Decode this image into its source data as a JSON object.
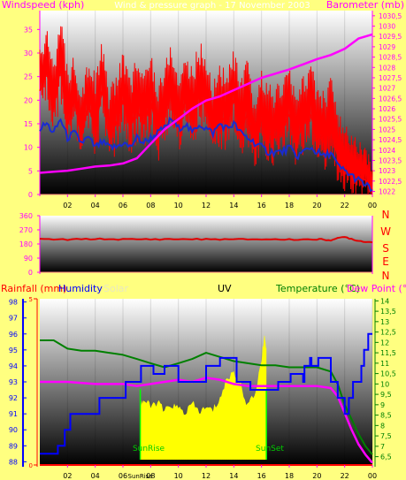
{
  "colors": {
    "background": "#ffff80",
    "wind": "#ff0000",
    "gust": "#ff0000",
    "wind_avg": "#1a2bd0",
    "barometer": "#ff00ff",
    "direction": "#e00000",
    "humidity": "#0000ff",
    "temperature": "#008000",
    "dewpoint": "#ff00ff",
    "solar": "#ffff00",
    "rain": "#ff0000",
    "daylight_line": "#00ff00",
    "axis_labels": "#ff00ff",
    "grid_line": "#ff8080"
  },
  "chart_data": [
    {
      "id": "wind-barometer",
      "type": "line",
      "title": "Wind & pressure graph - 17 November 2003",
      "left_axis_title": "Windspeed (kph)",
      "right_axis_title": "Barometer (mb)",
      "x_ticks": [
        "02",
        "04",
        "06",
        "08",
        "10",
        "12",
        "14",
        "16",
        "18",
        "20",
        "22",
        "00"
      ],
      "x_range": [
        0,
        24
      ],
      "left_ticks": [
        "0",
        "5",
        "10",
        "15",
        "20",
        "25",
        "30",
        "35"
      ],
      "left_range": [
        0,
        39
      ],
      "right_ticks": [
        "1022",
        "1022,5",
        "1023",
        "1023,5",
        "1024",
        "1024,5",
        "1025",
        "1025,5",
        "1026",
        "1026,5",
        "1027",
        "1027,5",
        "1028",
        "1028,5",
        "1029",
        "1029,5",
        "1030",
        "1030,5"
      ],
      "right_range": [
        1021.85,
        1030.75
      ],
      "series": {
        "gust_kph": {
          "x": [
            0,
            0.5,
            1,
            1.5,
            2,
            2.5,
            3,
            3.5,
            4,
            4.5,
            5,
            5.5,
            6,
            6.5,
            7,
            7.5,
            8,
            8.5,
            9,
            9.5,
            10,
            10.5,
            11,
            11.5,
            12,
            12.5,
            13,
            13.5,
            14,
            14.5,
            15,
            15.5,
            16,
            16.5,
            17,
            17.5,
            18,
            18.5,
            19,
            19.5,
            20,
            20.5,
            21,
            21.5,
            22,
            22.5,
            23,
            23.5,
            24
          ],
          "y": [
            31,
            35,
            30,
            38,
            28,
            30,
            24,
            30,
            26,
            33,
            22,
            26,
            31,
            25,
            30,
            26,
            31,
            24,
            28,
            33,
            25,
            31,
            27,
            33,
            30,
            24,
            29,
            26,
            31,
            25,
            29,
            20,
            27,
            24,
            23,
            25,
            28,
            21,
            26,
            28,
            24,
            22,
            26,
            18,
            15,
            13,
            12,
            10,
            7
          ]
        },
        "wind_kph": {
          "x": [
            0,
            0.5,
            1,
            1.5,
            2,
            2.5,
            3,
            3.5,
            4,
            4.5,
            5,
            5.5,
            6,
            6.5,
            7,
            7.5,
            8,
            8.5,
            9,
            9.5,
            10,
            10.5,
            11,
            11.5,
            12,
            12.5,
            13,
            13.5,
            14,
            14.5,
            15,
            15.5,
            16,
            16.5,
            17,
            17.5,
            18,
            18.5,
            19,
            19.5,
            20,
            20.5,
            21,
            21.5,
            22,
            22.5,
            23,
            23.5,
            24
          ],
          "y": [
            22,
            26,
            18,
            27,
            15,
            20,
            12,
            19,
            14,
            22,
            12,
            15,
            20,
            14,
            18,
            15,
            20,
            13,
            17,
            22,
            14,
            20,
            16,
            21,
            19,
            13,
            17,
            15,
            20,
            14,
            17,
            10,
            16,
            13,
            12,
            14,
            17,
            11,
            15,
            17,
            13,
            11,
            14,
            8,
            6,
            5,
            4,
            3,
            1
          ]
        },
        "average_kph": {
          "x": [
            0,
            0.5,
            1,
            1.5,
            2,
            2.5,
            3,
            3.5,
            4,
            4.5,
            5,
            5.5,
            6,
            6.5,
            7,
            7.5,
            8,
            8.5,
            9,
            9.5,
            10,
            10.5,
            11,
            11.5,
            12,
            12.5,
            13,
            13.5,
            14,
            14.5,
            15,
            15.5,
            16,
            16.5,
            17,
            17.5,
            18,
            18.5,
            19,
            19.5,
            20,
            20.5,
            21,
            21.5,
            22,
            22.5,
            23,
            23.5,
            24
          ],
          "y": [
            14,
            15,
            13,
            16,
            12,
            13,
            11,
            12,
            10,
            11,
            10,
            10,
            11,
            10,
            12,
            11,
            12,
            13,
            14,
            16,
            14,
            15,
            13,
            15,
            14,
            13,
            15,
            14,
            15,
            13,
            12,
            11,
            10,
            9,
            9,
            9,
            10,
            8,
            9,
            10,
            9,
            8,
            9,
            6,
            5,
            4,
            3,
            2,
            1
          ]
        },
        "barometer_mb": {
          "x": [
            0,
            1,
            2,
            3,
            4,
            5,
            6,
            7,
            8,
            9,
            10,
            11,
            12,
            13,
            14,
            15,
            16,
            17,
            18,
            19,
            20,
            21,
            22,
            23,
            24
          ],
          "y": [
            1022.9,
            1022.95,
            1023.0,
            1023.1,
            1023.2,
            1023.25,
            1023.35,
            1023.6,
            1024.3,
            1025.0,
            1025.5,
            1026.0,
            1026.4,
            1026.6,
            1026.9,
            1027.2,
            1027.5,
            1027.7,
            1027.9,
            1028.15,
            1028.4,
            1028.6,
            1028.9,
            1029.4,
            1029.6
          ]
        }
      }
    },
    {
      "id": "wind-direction",
      "type": "line",
      "left_ticks": [
        "0",
        "90",
        "180",
        "270",
        "360"
      ],
      "right_labels": [
        "N",
        "W",
        "S",
        "E",
        "N"
      ],
      "range": [
        0,
        360
      ],
      "series": {
        "direction_deg": {
          "x": [
            0,
            2,
            4,
            6,
            8,
            10,
            12,
            14,
            16,
            18,
            20,
            21,
            22,
            23,
            24
          ],
          "y": [
            210,
            208,
            212,
            209,
            210,
            211,
            210,
            209,
            210,
            208,
            210,
            205,
            225,
            200,
            190
          ]
        }
      }
    },
    {
      "id": "rain-humidity-uv-temp",
      "type": "line",
      "labels": {
        "rain": "Rainfall (mm)",
        "humidity": "Humidity",
        "solar": "Solar",
        "uv": "UV",
        "temperature": "Temperature (°C)",
        "dewpoint": "Dew Point (°C)"
      },
      "sunrise_label": "SunRise",
      "sunset_label": "SunSet",
      "sunrise_tick": "SunRise",
      "x_ticks": [
        "02",
        "04",
        "06",
        "08",
        "10",
        "12",
        "14",
        "16",
        "18",
        "20",
        "22",
        "00"
      ],
      "x_range": [
        0,
        24
      ],
      "humidity_ticks": [
        "88",
        "89",
        "90",
        "91",
        "92",
        "93",
        "94",
        "95",
        "96",
        "97",
        "98"
      ],
      "humidity_range": [
        87.8,
        98.2
      ],
      "rain_ticks": [
        "0",
        "5"
      ],
      "rain_range": [
        0,
        5
      ],
      "temperature_ticks": [
        "6,5",
        "7",
        "7,5",
        "8",
        "8,5",
        "9",
        "9,5",
        "10",
        "10,5",
        "11",
        "11,5",
        "12",
        "12,5",
        "13",
        "13,5",
        "14"
      ],
      "temperature_range": [
        6.1,
        14.1
      ],
      "sunrise_hour": 7.25,
      "sunset_hour": 16.35,
      "series": {
        "humidity_pct": {
          "x": [
            0,
            1.2,
            1.3,
            1.8,
            2.2,
            4.3,
            6.2,
            7.3,
            8.2,
            9.0,
            10.0,
            12.0,
            13.0,
            14.2,
            15.2,
            16.5,
            17.2,
            18.1,
            19.0,
            19.1,
            19.5,
            19.6,
            20.0,
            20.1,
            21.0,
            21.5,
            22.0,
            22.3,
            22.6,
            23.2,
            23.4,
            23.7,
            24
          ],
          "y": [
            88.5,
            88.5,
            89,
            90,
            91,
            92,
            93,
            94,
            93.5,
            94,
            93,
            94,
            94.5,
            93,
            92.5,
            92.5,
            93,
            93.5,
            93,
            94,
            94.5,
            94,
            94,
            94.5,
            93,
            92,
            91,
            92,
            93,
            94,
            95,
            96,
            96
          ]
        },
        "temperature_c": {
          "x": [
            0,
            1,
            2,
            3,
            4,
            5,
            6,
            7,
            8,
            9,
            10,
            11,
            12,
            13,
            14,
            15,
            16,
            17,
            18,
            19,
            20,
            21,
            21.5,
            22,
            22.5,
            23,
            23.5,
            24
          ],
          "y": [
            12.1,
            12.1,
            11.7,
            11.6,
            11.6,
            11.5,
            11.4,
            11.2,
            11.0,
            10.8,
            11.0,
            11.2,
            11.5,
            11.3,
            11.1,
            11.0,
            10.9,
            10.9,
            10.8,
            10.8,
            10.8,
            10.6,
            10.0,
            9.0,
            8.3,
            7.6,
            7.0,
            6.6
          ]
        },
        "dewpoint_c": {
          "x": [
            0,
            2,
            4,
            6,
            7,
            8,
            9,
            10,
            11,
            12,
            13,
            14,
            15,
            16,
            17,
            18,
            19,
            20,
            21,
            21.5,
            22,
            22.5,
            23,
            23.5,
            24
          ],
          "y": [
            10.1,
            10.1,
            10.0,
            10.0,
            9.9,
            10.0,
            10.1,
            10.2,
            10.1,
            10.3,
            10.2,
            10.0,
            9.9,
            9.9,
            9.9,
            9.9,
            9.9,
            9.9,
            9.8,
            9.4,
            8.6,
            7.8,
            7.1,
            6.6,
            6.2
          ]
        },
        "solar_fraction": {
          "x": [
            7.25,
            7.5,
            8,
            8.5,
            9,
            9.5,
            10,
            10.5,
            11,
            11.5,
            12,
            12.5,
            13,
            13.5,
            14,
            14.5,
            15,
            15.5,
            16,
            16.2,
            16.35
          ],
          "y": [
            0.35,
            0.37,
            0.33,
            0.36,
            0.3,
            0.34,
            0.32,
            0.29,
            0.35,
            0.3,
            0.32,
            0.31,
            0.38,
            0.5,
            0.55,
            0.46,
            0.34,
            0.4,
            0.62,
            0.78,
            0.7
          ]
        },
        "rain_mm": {
          "x": [
            0,
            24
          ],
          "y": [
            0,
            0
          ]
        }
      }
    }
  ]
}
